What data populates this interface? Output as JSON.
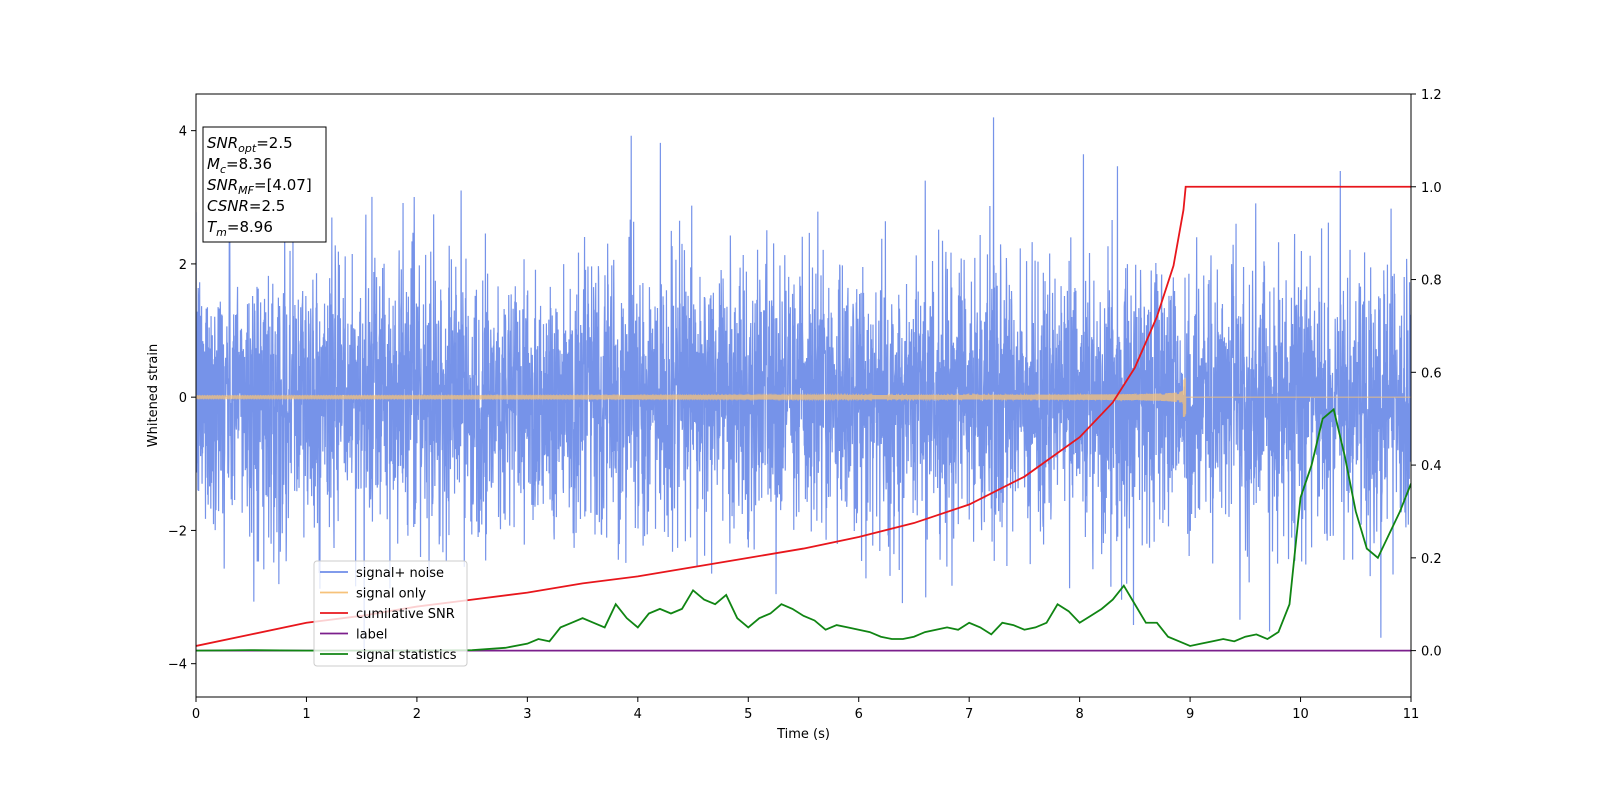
{
  "chart_data": {
    "type": "line",
    "title": "",
    "xlabel": "Time (s)",
    "ylabel_left": "Whitened strain",
    "ylabel_right": "",
    "xlim": [
      0,
      11
    ],
    "ylim_left": [
      -4.5,
      4.55
    ],
    "ylim_right": [
      -0.1,
      1.2
    ],
    "x_ticks": [
      0,
      1,
      2,
      3,
      4,
      5,
      6,
      7,
      8,
      9,
      10,
      11
    ],
    "y_left_ticks": [
      -4,
      -2,
      0,
      2,
      4
    ],
    "y_right_ticks": [
      "0.0",
      "0.2",
      "0.4",
      "0.6",
      "0.8",
      "1.0",
      "1.2"
    ],
    "grid": false,
    "legend_position": "lower-left",
    "info_box": [
      {
        "var": "SNR",
        "sub": "opt",
        "value": "=2.5"
      },
      {
        "var": "M",
        "sub": "c",
        "value": "=8.36"
      },
      {
        "var": "SNR",
        "sub": "MF",
        "value": "=[4.07]"
      },
      {
        "var": "CSNR",
        "sub": "",
        "value": "=2.5"
      },
      {
        "var": "T",
        "sub": "m",
        "value": "=8.96"
      }
    ],
    "merger_time": 8.96,
    "noise_std": 1.0,
    "series": [
      {
        "name": "signal+ noise",
        "color": "#6f8de8",
        "axis": "left",
        "kind": "noise"
      },
      {
        "name": "signal only",
        "color": "#f6c27a",
        "axis": "left",
        "kind": "chirp",
        "amplitude_at_merger": 0.3
      },
      {
        "name": "cumilative SNR",
        "color": "#e8161c",
        "axis": "right",
        "points": [
          [
            0,
            0.01
          ],
          [
            0.5,
            0.035
          ],
          [
            1,
            0.06
          ],
          [
            1.5,
            0.075
          ],
          [
            2,
            0.095
          ],
          [
            2.5,
            0.11
          ],
          [
            3,
            0.125
          ],
          [
            3.5,
            0.145
          ],
          [
            4,
            0.16
          ],
          [
            4.5,
            0.18
          ],
          [
            5,
            0.2
          ],
          [
            5.5,
            0.22
          ],
          [
            6,
            0.245
          ],
          [
            6.5,
            0.275
          ],
          [
            7,
            0.315
          ],
          [
            7.5,
            0.375
          ],
          [
            8,
            0.46
          ],
          [
            8.3,
            0.535
          ],
          [
            8.5,
            0.61
          ],
          [
            8.7,
            0.72
          ],
          [
            8.85,
            0.83
          ],
          [
            8.94,
            0.95
          ],
          [
            8.96,
            1.0
          ],
          [
            11,
            1.0
          ]
        ]
      },
      {
        "name": "label",
        "color": "#7b1f8c",
        "axis": "right",
        "points": [
          [
            0,
            0.0
          ],
          [
            11,
            0.0
          ]
        ]
      },
      {
        "name": "signal statistics",
        "color": "#108513",
        "axis": "right",
        "points": [
          [
            0,
            0.0
          ],
          [
            0.5,
            0.001
          ],
          [
            1,
            0.0
          ],
          [
            1.5,
            0.0
          ],
          [
            2,
            0.0
          ],
          [
            2.5,
            0.001
          ],
          [
            2.8,
            0.006
          ],
          [
            3,
            0.015
          ],
          [
            3.1,
            0.025
          ],
          [
            3.2,
            0.02
          ],
          [
            3.3,
            0.05
          ],
          [
            3.4,
            0.06
          ],
          [
            3.5,
            0.07
          ],
          [
            3.6,
            0.06
          ],
          [
            3.7,
            0.05
          ],
          [
            3.8,
            0.1
          ],
          [
            3.9,
            0.07
          ],
          [
            4,
            0.05
          ],
          [
            4.1,
            0.08
          ],
          [
            4.2,
            0.09
          ],
          [
            4.3,
            0.08
          ],
          [
            4.4,
            0.09
          ],
          [
            4.5,
            0.13
          ],
          [
            4.6,
            0.11
          ],
          [
            4.7,
            0.1
          ],
          [
            4.8,
            0.12
          ],
          [
            4.9,
            0.07
          ],
          [
            5,
            0.05
          ],
          [
            5.1,
            0.07
          ],
          [
            5.2,
            0.08
          ],
          [
            5.3,
            0.1
          ],
          [
            5.4,
            0.09
          ],
          [
            5.5,
            0.075
          ],
          [
            5.6,
            0.065
          ],
          [
            5.7,
            0.045
          ],
          [
            5.8,
            0.055
          ],
          [
            5.9,
            0.05
          ],
          [
            6,
            0.045
          ],
          [
            6.1,
            0.04
          ],
          [
            6.2,
            0.03
          ],
          [
            6.3,
            0.025
          ],
          [
            6.4,
            0.025
          ],
          [
            6.5,
            0.03
          ],
          [
            6.6,
            0.04
          ],
          [
            6.7,
            0.045
          ],
          [
            6.8,
            0.05
          ],
          [
            6.9,
            0.045
          ],
          [
            7,
            0.06
          ],
          [
            7.1,
            0.05
          ],
          [
            7.2,
            0.035
          ],
          [
            7.3,
            0.06
          ],
          [
            7.4,
            0.055
          ],
          [
            7.5,
            0.045
          ],
          [
            7.6,
            0.05
          ],
          [
            7.7,
            0.06
          ],
          [
            7.8,
            0.1
          ],
          [
            7.9,
            0.085
          ],
          [
            8,
            0.06
          ],
          [
            8.1,
            0.075
          ],
          [
            8.2,
            0.09
          ],
          [
            8.3,
            0.11
          ],
          [
            8.4,
            0.14
          ],
          [
            8.5,
            0.1
          ],
          [
            8.6,
            0.06
          ],
          [
            8.7,
            0.06
          ],
          [
            8.8,
            0.03
          ],
          [
            8.9,
            0.02
          ],
          [
            9,
            0.01
          ],
          [
            9.1,
            0.015
          ],
          [
            9.2,
            0.02
          ],
          [
            9.3,
            0.025
          ],
          [
            9.4,
            0.02
          ],
          [
            9.5,
            0.03
          ],
          [
            9.6,
            0.035
          ],
          [
            9.7,
            0.025
          ],
          [
            9.8,
            0.04
          ],
          [
            9.9,
            0.1
          ],
          [
            10,
            0.33
          ],
          [
            10.1,
            0.4
          ],
          [
            10.2,
            0.5
          ],
          [
            10.3,
            0.52
          ],
          [
            10.4,
            0.42
          ],
          [
            10.5,
            0.3
          ],
          [
            10.6,
            0.22
          ],
          [
            10.7,
            0.2
          ],
          [
            10.8,
            0.25
          ],
          [
            10.9,
            0.3
          ],
          [
            11,
            0.36
          ]
        ]
      }
    ]
  }
}
